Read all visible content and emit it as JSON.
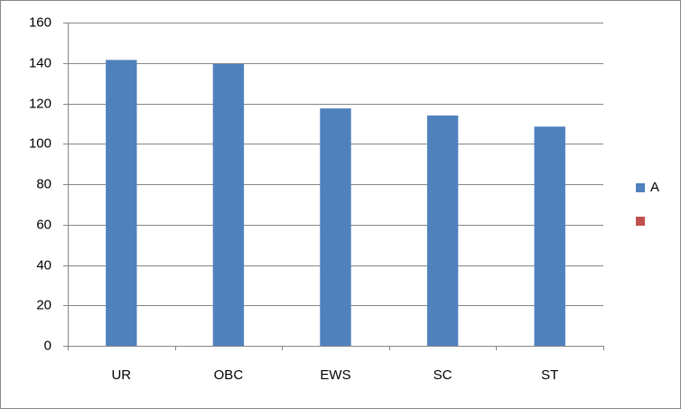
{
  "chart_data": {
    "type": "bar",
    "categories": [
      "UR",
      "OBC",
      "EWS",
      "SC",
      "ST"
    ],
    "series": [
      {
        "name": "A",
        "color": "#4f81bd",
        "values": [
          141.5,
          139.5,
          117.5,
          114,
          108.5
        ]
      },
      {
        "name": null,
        "color": "#c0504d",
        "values": [
          null,
          null,
          null,
          null,
          null
        ]
      }
    ],
    "ylim": [
      0,
      160
    ],
    "yticks": [
      0,
      20,
      40,
      60,
      80,
      100,
      120,
      140,
      160
    ],
    "grid": true,
    "legend": "right"
  }
}
